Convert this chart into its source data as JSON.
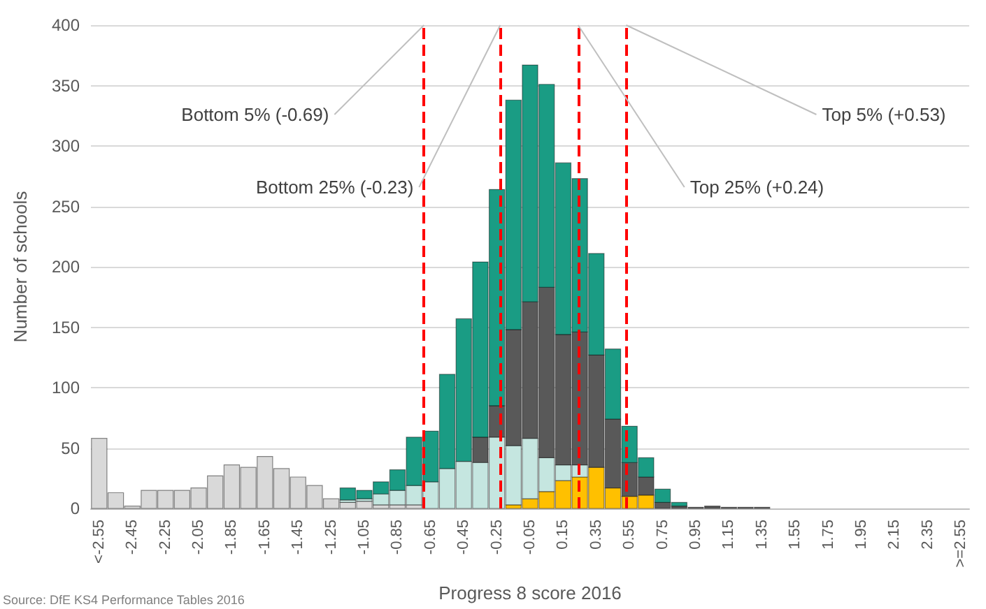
{
  "chart_data": {
    "type": "bar",
    "stacked": true,
    "xlabel": "Progress 8 score 2016",
    "ylabel": "Number of schools",
    "annotations": [
      "Source: DfE KS4 Performance Tables 2016"
    ],
    "xlim": [
      -2.7,
      2.6
    ],
    "xticks": [
      {
        "value": -2.65,
        "label": "<-2.55"
      },
      -2.45,
      -2.25,
      -2.05,
      -1.85,
      -1.65,
      -1.45,
      -1.25,
      -1.05,
      -0.85,
      -0.65,
      -0.45,
      -0.25,
      -0.05,
      0.15,
      0.35,
      0.55,
      0.75,
      0.95,
      1.15,
      1.35,
      1.55,
      1.75,
      1.95,
      2.15,
      2.35,
      {
        "value": 2.55,
        "label": ">=2.55"
      }
    ],
    "ylim": [
      0,
      400
    ],
    "yticks": [
      0,
      50,
      100,
      150,
      200,
      250,
      300,
      350,
      400
    ],
    "grid": "y",
    "x": [
      -2.65,
      -2.55,
      -2.45,
      -2.35,
      -2.25,
      -2.15,
      -2.05,
      -1.95,
      -1.85,
      -1.75,
      -1.65,
      -1.55,
      -1.45,
      -1.35,
      -1.25,
      -1.15,
      -1.05,
      -0.95,
      -0.85,
      -0.75,
      -0.65,
      -0.55,
      -0.45,
      -0.35,
      -0.25,
      -0.15,
      -0.05,
      0.05,
      0.15,
      0.25,
      0.35,
      0.45,
      0.55,
      0.65,
      0.75,
      0.85,
      0.95,
      1.05,
      1.15,
      1.25,
      1.35
    ],
    "series": [
      {
        "color": "#d9d9d9",
        "values": [
          58,
          13,
          2,
          15,
          15,
          15,
          17,
          27,
          36,
          34,
          43,
          33,
          26,
          19,
          8,
          5,
          6,
          3,
          3,
          3,
          null,
          null,
          null,
          null,
          null,
          null,
          null,
          null,
          null,
          null,
          null,
          null,
          null,
          null,
          null,
          null,
          null,
          null,
          null,
          null,
          null
        ]
      },
      {
        "color": "#ffc000",
        "values": [
          null,
          null,
          null,
          null,
          null,
          null,
          null,
          null,
          null,
          null,
          null,
          null,
          null,
          null,
          null,
          null,
          null,
          null,
          null,
          null,
          null,
          null,
          null,
          null,
          null,
          3,
          8,
          14,
          23,
          26,
          34,
          17,
          10,
          11,
          null,
          null,
          null,
          null,
          null,
          null,
          null
        ]
      },
      {
        "color": "#c5e6e0",
        "values": [
          null,
          null,
          null,
          null,
          null,
          null,
          null,
          null,
          null,
          null,
          null,
          null,
          null,
          null,
          null,
          2,
          2,
          9,
          12,
          16,
          22,
          33,
          39,
          38,
          59,
          49,
          50,
          28,
          13,
          10,
          null,
          null,
          null,
          null,
          null,
          null,
          null,
          null,
          null,
          null,
          null
        ]
      },
      {
        "color": "#595959",
        "values": [
          null,
          null,
          null,
          null,
          null,
          null,
          null,
          null,
          null,
          null,
          null,
          null,
          null,
          null,
          null,
          null,
          null,
          null,
          null,
          null,
          null,
          null,
          null,
          21,
          26,
          96,
          113,
          141,
          108,
          110,
          93,
          57,
          28,
          15,
          5,
          2,
          1,
          2,
          1,
          1,
          1
        ]
      },
      {
        "color": "#1a9c84",
        "values": [
          null,
          null,
          null,
          null,
          null,
          null,
          null,
          null,
          null,
          null,
          null,
          null,
          null,
          null,
          null,
          10,
          7,
          10,
          17,
          40,
          42,
          78,
          118,
          145,
          179,
          190,
          196,
          168,
          142,
          127,
          84,
          58,
          30,
          16,
          11,
          3,
          null,
          null,
          null,
          null,
          null
        ]
      }
    ],
    "ref_lines": [
      {
        "axis": "x",
        "value": -0.69,
        "label": "Bottom 5% (-0.69)",
        "color": "#ff0000",
        "line_style": "dashed"
      },
      {
        "axis": "x",
        "value": -0.23,
        "label": "Bottom 25% (-0.23)",
        "color": "#ff0000",
        "line_style": "dashed"
      },
      {
        "axis": "x",
        "value": 0.24,
        "label": "Top 25% (+0.24)",
        "color": "#ff0000",
        "line_style": "dashed"
      },
      {
        "axis": "x",
        "value": 0.53,
        "label": "Top 5% (+0.53)",
        "color": "#ff0000",
        "line_style": "dashed"
      }
    ]
  }
}
